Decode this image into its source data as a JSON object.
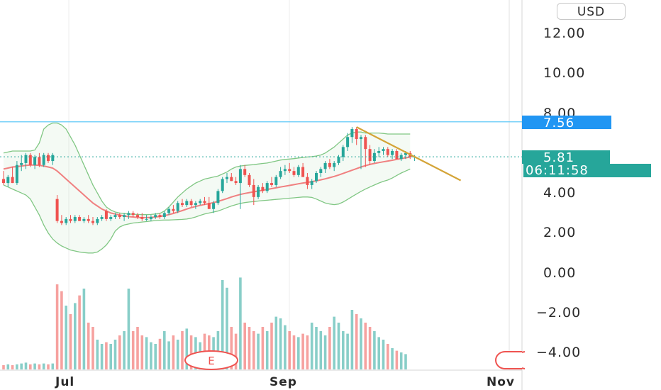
{
  "currency_button": "USD",
  "earnings_marker": "E",
  "price_label": {
    "value": "7.56",
    "color": "#2196f3"
  },
  "last_price": {
    "value": "5.81",
    "countdown": "06:11:58",
    "color": "#26a69a"
  },
  "chart_data": {
    "type": "candlestick",
    "y_ticks": [
      "12.00",
      "10.00",
      "8.00",
      "4.00",
      "2.00",
      "0.00",
      "−2.00",
      "−4.00"
    ],
    "x_ticks": [
      "Jul",
      "Sep",
      "Nov"
    ],
    "ylim": [
      -5,
      13.5
    ],
    "horizontal_line": 7.56,
    "last_price_line": 5.81,
    "colors": {
      "up": "#26a69a",
      "down": "#ef5350",
      "ma": "#f08080",
      "band": "#81c784",
      "trend": "#d4a437"
    },
    "candles": [
      [
        4.7,
        5.1,
        4.4,
        4.5
      ],
      [
        4.5,
        4.9,
        4.3,
        4.8
      ],
      [
        4.8,
        5.3,
        4.5,
        4.5
      ],
      [
        4.5,
        5.6,
        4.4,
        5.4
      ],
      [
        5.4,
        5.9,
        5.1,
        5.5
      ],
      [
        5.5,
        6.0,
        5.2,
        5.9
      ],
      [
        5.9,
        6.0,
        5.3,
        5.4
      ],
      [
        5.4,
        5.9,
        5.2,
        5.8
      ],
      [
        5.8,
        6.0,
        5.3,
        5.4
      ],
      [
        5.4,
        6.0,
        5.3,
        5.9
      ],
      [
        5.9,
        6.0,
        5.5,
        5.6
      ],
      [
        5.6,
        6.0,
        5.4,
        5.9
      ],
      [
        3.7,
        3.9,
        2.5,
        2.6
      ],
      [
        2.6,
        2.9,
        2.4,
        2.5
      ],
      [
        2.5,
        2.8,
        2.4,
        2.7
      ],
      [
        2.7,
        2.9,
        2.5,
        2.6
      ],
      [
        2.6,
        2.9,
        2.5,
        2.8
      ],
      [
        2.8,
        2.9,
        2.6,
        2.6
      ],
      [
        2.6,
        2.8,
        2.5,
        2.7
      ],
      [
        2.7,
        2.9,
        2.5,
        2.6
      ],
      [
        2.6,
        2.8,
        2.4,
        2.5
      ],
      [
        2.5,
        2.8,
        2.4,
        2.7
      ],
      [
        2.7,
        2.9,
        2.6,
        2.8
      ],
      [
        3.1,
        3.2,
        2.6,
        2.7
      ],
      [
        2.7,
        2.9,
        2.6,
        2.8
      ],
      [
        2.8,
        3.0,
        2.7,
        2.9
      ],
      [
        2.9,
        3.0,
        2.7,
        2.8
      ],
      [
        2.8,
        3.0,
        2.6,
        2.9
      ],
      [
        2.9,
        3.1,
        2.7,
        3.0
      ],
      [
        3.0,
        3.1,
        2.8,
        2.9
      ],
      [
        2.9,
        3.0,
        2.7,
        2.8
      ],
      [
        2.8,
        3.0,
        2.6,
        2.7
      ],
      [
        2.7,
        2.9,
        2.6,
        2.7
      ],
      [
        2.7,
        2.9,
        2.6,
        2.8
      ],
      [
        2.8,
        3.0,
        2.7,
        2.9
      ],
      [
        2.9,
        3.0,
        2.7,
        2.8
      ],
      [
        2.8,
        3.1,
        2.7,
        3.0
      ],
      [
        3.0,
        3.3,
        2.9,
        3.2
      ],
      [
        3.2,
        3.4,
        3.0,
        3.1
      ],
      [
        3.1,
        3.6,
        3.0,
        3.5
      ],
      [
        3.5,
        3.7,
        3.3,
        3.4
      ],
      [
        3.4,
        3.7,
        3.3,
        3.6
      ],
      [
        3.6,
        3.7,
        3.3,
        3.4
      ],
      [
        3.4,
        3.6,
        3.2,
        3.5
      ],
      [
        3.5,
        3.7,
        3.4,
        3.6
      ],
      [
        3.6,
        3.8,
        3.4,
        3.5
      ],
      [
        3.5,
        3.8,
        3.3,
        3.2
      ],
      [
        3.2,
        3.6,
        3.0,
        3.5
      ],
      [
        3.5,
        4.2,
        3.4,
        4.1
      ],
      [
        4.1,
        4.8,
        4.0,
        4.7
      ],
      [
        4.7,
        5.0,
        4.5,
        4.8
      ],
      [
        4.8,
        5.0,
        4.6,
        4.6
      ],
      [
        4.6,
        4.8,
        4.4,
        4.5
      ],
      [
        4.5,
        5.4,
        3.2,
        5.2
      ],
      [
        5.2,
        5.4,
        4.8,
        4.9
      ],
      [
        4.9,
        5.0,
        4.3,
        4.4
      ],
      [
        4.4,
        4.7,
        3.4,
        3.8
      ],
      [
        3.8,
        4.4,
        3.7,
        4.3
      ],
      [
        4.3,
        4.5,
        4.0,
        4.1
      ],
      [
        4.1,
        4.6,
        4.0,
        4.5
      ],
      [
        4.5,
        4.8,
        4.3,
        4.4
      ],
      [
        4.4,
        4.9,
        4.3,
        4.8
      ],
      [
        4.8,
        5.3,
        4.7,
        5.1
      ],
      [
        5.1,
        5.4,
        4.9,
        5.2
      ],
      [
        5.2,
        5.5,
        5.0,
        5.1
      ],
      [
        5.1,
        5.3,
        4.8,
        4.9
      ],
      [
        4.9,
        5.4,
        4.8,
        5.3
      ],
      [
        5.3,
        5.5,
        4.9,
        4.8
      ],
      [
        4.8,
        5.0,
        4.2,
        4.4
      ],
      [
        4.4,
        4.7,
        4.2,
        4.6
      ],
      [
        4.6,
        5.1,
        4.5,
        5.0
      ],
      [
        5.0,
        5.3,
        4.8,
        5.2
      ],
      [
        5.2,
        5.6,
        5.0,
        5.5
      ],
      [
        5.5,
        5.7,
        5.2,
        5.3
      ],
      [
        5.3,
        5.6,
        5.1,
        5.5
      ],
      [
        5.5,
        5.9,
        5.4,
        5.8
      ],
      [
        5.8,
        6.4,
        5.6,
        6.3
      ],
      [
        6.3,
        7.0,
        6.1,
        6.8
      ],
      [
        6.8,
        7.3,
        6.5,
        7.2
      ],
      [
        7.2,
        7.3,
        6.4,
        6.7
      ],
      [
        6.7,
        6.9,
        5.2,
        6.8
      ],
      [
        6.8,
        6.9,
        5.3,
        6.2
      ],
      [
        6.2,
        6.4,
        5.4,
        5.6
      ],
      [
        5.6,
        6.2,
        5.5,
        6.0
      ],
      [
        6.0,
        6.3,
        5.8,
        6.1
      ],
      [
        6.1,
        6.3,
        5.9,
        6.2
      ],
      [
        6.2,
        6.3,
        5.8,
        5.9
      ],
      [
        5.9,
        6.2,
        5.7,
        6.1
      ],
      [
        6.1,
        6.2,
        5.8,
        5.7
      ],
      [
        5.7,
        6.0,
        5.6,
        5.9
      ],
      [
        5.9,
        6.1,
        5.7,
        6.0
      ],
      [
        6.0,
        6.1,
        5.7,
        5.8
      ],
      [
        5.8,
        5.9,
        5.6,
        5.81
      ]
    ],
    "volume_ratio": [
      0.05,
      0.06,
      0.05,
      0.06,
      0.07,
      0.08,
      0.06,
      0.07,
      0.06,
      0.07,
      0.06,
      0.07,
      1.0,
      0.92,
      0.75,
      0.65,
      0.78,
      0.87,
      0.95,
      0.55,
      0.5,
      0.35,
      0.3,
      0.32,
      0.3,
      0.35,
      0.4,
      0.45,
      0.95,
      0.45,
      0.5,
      0.4,
      0.38,
      0.32,
      0.3,
      0.36,
      0.45,
      0.33,
      0.4,
      0.35,
      0.45,
      0.48,
      0.4,
      0.38,
      0.32,
      0.42,
      0.4,
      0.38,
      0.45,
      1.05,
      0.96,
      0.5,
      0.42,
      1.08,
      0.55,
      0.5,
      0.45,
      0.42,
      0.5,
      0.45,
      0.55,
      0.62,
      0.6,
      0.52,
      0.45,
      0.4,
      0.38,
      0.42,
      0.4,
      0.55,
      0.5,
      0.45,
      0.4,
      0.5,
      0.62,
      0.55,
      0.45,
      0.42,
      0.7,
      0.65,
      0.6,
      0.55,
      0.5,
      0.45,
      0.38,
      0.35,
      0.3,
      0.25,
      0.22,
      0.2,
      0.18
    ],
    "ma20": [
      5.2,
      5.25,
      5.3,
      5.32,
      5.35,
      5.38,
      5.4,
      5.4,
      5.38,
      5.35,
      5.3,
      5.25,
      5.1,
      4.9,
      4.7,
      4.5,
      4.3,
      4.1,
      3.9,
      3.7,
      3.5,
      3.35,
      3.2,
      3.1,
      3.0,
      2.95,
      2.9,
      2.85,
      2.82,
      2.8,
      2.78,
      2.77,
      2.77,
      2.78,
      2.8,
      2.83,
      2.87,
      2.92,
      2.98,
      3.05,
      3.12,
      3.2,
      3.27,
      3.33,
      3.38,
      3.43,
      3.47,
      3.52,
      3.58,
      3.65,
      3.72,
      3.8,
      3.87,
      3.93,
      3.98,
      4.02,
      4.06,
      4.1,
      4.14,
      4.18,
      4.22,
      4.26,
      4.3,
      4.34,
      4.38,
      4.42,
      4.46,
      4.5,
      4.53,
      4.57,
      4.61,
      4.66,
      4.71,
      4.77,
      4.83,
      4.9,
      4.98,
      5.06,
      5.14,
      5.22,
      5.3,
      5.37,
      5.43,
      5.48,
      5.52,
      5.56,
      5.6,
      5.64,
      5.68,
      5.72,
      5.76,
      5.8
    ],
    "bb_upper": [
      6.0,
      6.05,
      6.1,
      6.1,
      6.1,
      6.1,
      6.1,
      6.15,
      6.5,
      7.2,
      7.4,
      7.5,
      7.5,
      7.4,
      7.2,
      6.8,
      6.4,
      5.9,
      5.4,
      4.9,
      4.4,
      4.0,
      3.6,
      3.3,
      3.15,
      3.05,
      3.0,
      2.97,
      2.95,
      2.94,
      2.93,
      2.92,
      2.92,
      2.93,
      2.95,
      2.98,
      3.1,
      3.3,
      3.55,
      3.8,
      4.0,
      4.2,
      4.35,
      4.5,
      4.6,
      4.7,
      4.75,
      4.8,
      4.85,
      4.95,
      5.05,
      5.2,
      5.3,
      5.35,
      5.38,
      5.4,
      5.42,
      5.45,
      5.48,
      5.5,
      5.55,
      5.6,
      5.65,
      5.68,
      5.7,
      5.72,
      5.75,
      5.78,
      5.8,
      5.82,
      5.85,
      5.9,
      6.0,
      6.15,
      6.3,
      6.5,
      6.7,
      6.9,
      7.0,
      7.05,
      7.05,
      7.0,
      7.0,
      7.0,
      7.0,
      6.98,
      6.95,
      6.95,
      6.95,
      6.95,
      6.95,
      6.95
    ],
    "bb_lower": [
      4.4,
      4.3,
      4.2,
      4.1,
      4.0,
      3.9,
      3.7,
      3.3,
      2.9,
      2.4,
      2.0,
      1.7,
      1.5,
      1.35,
      1.25,
      1.15,
      1.1,
      1.05,
      1.02,
      1.0,
      1.0,
      1.05,
      1.2,
      1.4,
      1.7,
      2.1,
      2.3,
      2.4,
      2.45,
      2.5,
      2.52,
      2.55,
      2.57,
      2.6,
      2.62,
      2.64,
      2.65,
      2.65,
      2.66,
      2.67,
      2.68,
      2.7,
      2.74,
      2.8,
      2.88,
      2.95,
      3.0,
      3.05,
      3.1,
      3.18,
      3.27,
      3.35,
      3.42,
      3.48,
      3.52,
      3.55,
      3.57,
      3.6,
      3.62,
      3.64,
      3.66,
      3.68,
      3.7,
      3.72,
      3.74,
      3.76,
      3.78,
      3.8,
      3.8,
      3.78,
      3.7,
      3.6,
      3.5,
      3.45,
      3.42,
      3.45,
      3.55,
      3.68,
      3.82,
      3.95,
      4.08,
      4.2,
      4.3,
      4.4,
      4.5,
      4.58,
      4.65,
      4.75,
      4.88,
      5.0,
      5.1,
      5.2
    ]
  }
}
